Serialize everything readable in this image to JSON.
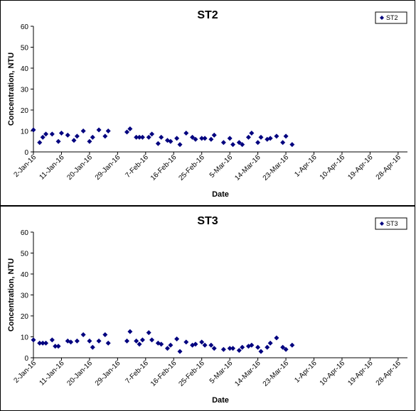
{
  "colors": {
    "marker": "#00007f",
    "axis": "#000000"
  },
  "chart_data": [
    {
      "type": "scatter",
      "title": "ST2",
      "xlabel": "Date",
      "ylabel": "Concentration, NTU",
      "ylim": [
        0,
        60
      ],
      "yticks": [
        "0",
        "10",
        "20",
        "30",
        "40",
        "50",
        "60"
      ],
      "xlim": [
        "2016-01-02",
        "2016-05-01"
      ],
      "xticks": [
        "2-Jan-16",
        "11-Jan-16",
        "20-Jan-16",
        "29-Jan-16",
        "7-Feb-16",
        "16-Feb-16",
        "25-Feb-16",
        "5-Mar-16",
        "14-Mar-16",
        "23-Mar-16",
        "1-Apr-16",
        "10-Apr-16",
        "19-Apr-16",
        "28-Apr-16"
      ],
      "legend": "top-right",
      "series": [
        {
          "name": "ST2",
          "points": [
            [
              "2016-01-02",
              10.5
            ],
            [
              "2016-01-04",
              4.5
            ],
            [
              "2016-01-05",
              7
            ],
            [
              "2016-01-06",
              8.5
            ],
            [
              "2016-01-08",
              8.5
            ],
            [
              "2016-01-10",
              5
            ],
            [
              "2016-01-11",
              9
            ],
            [
              "2016-01-13",
              8
            ],
            [
              "2016-01-15",
              5.5
            ],
            [
              "2016-01-16",
              7.5
            ],
            [
              "2016-01-18",
              10
            ],
            [
              "2016-01-20",
              5
            ],
            [
              "2016-01-21",
              7
            ],
            [
              "2016-01-23",
              10.5
            ],
            [
              "2016-01-25",
              7.5
            ],
            [
              "2016-01-26",
              10
            ],
            [
              "2016-02-01",
              9.5
            ],
            [
              "2016-02-02",
              11
            ],
            [
              "2016-02-04",
              7
            ],
            [
              "2016-02-05",
              7
            ],
            [
              "2016-02-06",
              7
            ],
            [
              "2016-02-08",
              7
            ],
            [
              "2016-02-09",
              8.5
            ],
            [
              "2016-02-11",
              4
            ],
            [
              "2016-02-12",
              7
            ],
            [
              "2016-02-14",
              5.5
            ],
            [
              "2016-02-15",
              5
            ],
            [
              "2016-02-17",
              6.5
            ],
            [
              "2016-02-18",
              3.5
            ],
            [
              "2016-02-20",
              9
            ],
            [
              "2016-02-22",
              7
            ],
            [
              "2016-02-23",
              6
            ],
            [
              "2016-02-25",
              6.5
            ],
            [
              "2016-02-26",
              6.5
            ],
            [
              "2016-02-28",
              6
            ],
            [
              "2016-02-29",
              8
            ],
            [
              "2016-03-03",
              4.5
            ],
            [
              "2016-03-05",
              6.5
            ],
            [
              "2016-03-06",
              3.5
            ],
            [
              "2016-03-08",
              4.5
            ],
            [
              "2016-03-09",
              3.5
            ],
            [
              "2016-03-11",
              7
            ],
            [
              "2016-03-12",
              9
            ],
            [
              "2016-03-14",
              4.5
            ],
            [
              "2016-03-15",
              7
            ],
            [
              "2016-03-17",
              6
            ],
            [
              "2016-03-18",
              6.5
            ],
            [
              "2016-03-20",
              7.5
            ],
            [
              "2016-03-22",
              4.5
            ],
            [
              "2016-03-23",
              7.5
            ],
            [
              "2016-03-25",
              3.5
            ]
          ]
        }
      ]
    },
    {
      "type": "scatter",
      "title": "ST3",
      "xlabel": "Date",
      "ylabel": "Concentration, NTU",
      "ylim": [
        0,
        60
      ],
      "yticks": [
        "0",
        "10",
        "20",
        "30",
        "40",
        "50",
        "60"
      ],
      "xlim": [
        "2016-01-02",
        "2016-05-01"
      ],
      "xticks": [
        "2-Jan-16",
        "11-Jan-16",
        "20-Jan-16",
        "29-Jan-16",
        "7-Feb-16",
        "16-Feb-16",
        "25-Feb-16",
        "5-Mar-16",
        "14-Mar-16",
        "23-Mar-16",
        "1-Apr-16",
        "10-Apr-16",
        "19-Apr-16",
        "28-Apr-16"
      ],
      "legend": "top-right",
      "series": [
        {
          "name": "ST3",
          "points": [
            [
              "2016-01-02",
              8.5
            ],
            [
              "2016-01-04",
              7
            ],
            [
              "2016-01-05",
              7
            ],
            [
              "2016-01-06",
              7
            ],
            [
              "2016-01-08",
              8.5
            ],
            [
              "2016-01-09",
              5.5
            ],
            [
              "2016-01-10",
              5.5
            ],
            [
              "2016-01-13",
              8
            ],
            [
              "2016-01-14",
              7.5
            ],
            [
              "2016-01-16",
              8
            ],
            [
              "2016-01-18",
              11
            ],
            [
              "2016-01-20",
              8
            ],
            [
              "2016-01-21",
              5
            ],
            [
              "2016-01-23",
              8
            ],
            [
              "2016-01-25",
              11
            ],
            [
              "2016-01-26",
              7
            ],
            [
              "2016-02-01",
              8
            ],
            [
              "2016-02-02",
              12.5
            ],
            [
              "2016-02-04",
              8
            ],
            [
              "2016-02-05",
              6.5
            ],
            [
              "2016-02-06",
              8.5
            ],
            [
              "2016-02-08",
              12
            ],
            [
              "2016-02-09",
              8.5
            ],
            [
              "2016-02-11",
              7
            ],
            [
              "2016-02-12",
              6.5
            ],
            [
              "2016-02-14",
              4.5
            ],
            [
              "2016-02-15",
              6
            ],
            [
              "2016-02-17",
              9
            ],
            [
              "2016-02-18",
              3
            ],
            [
              "2016-02-20",
              7.5
            ],
            [
              "2016-02-22",
              6
            ],
            [
              "2016-02-23",
              6.5
            ],
            [
              "2016-02-25",
              7.5
            ],
            [
              "2016-02-26",
              6
            ],
            [
              "2016-02-28",
              6
            ],
            [
              "2016-02-29",
              4.5
            ],
            [
              "2016-03-03",
              4
            ],
            [
              "2016-03-05",
              4.5
            ],
            [
              "2016-03-06",
              4.5
            ],
            [
              "2016-03-08",
              3.5
            ],
            [
              "2016-03-09",
              5
            ],
            [
              "2016-03-11",
              5.5
            ],
            [
              "2016-03-12",
              6
            ],
            [
              "2016-03-14",
              5
            ],
            [
              "2016-03-15",
              3
            ],
            [
              "2016-03-17",
              5
            ],
            [
              "2016-03-18",
              7
            ],
            [
              "2016-03-20",
              9.5
            ],
            [
              "2016-03-22",
              5
            ],
            [
              "2016-03-23",
              4
            ],
            [
              "2016-03-25",
              6
            ]
          ]
        }
      ]
    }
  ]
}
